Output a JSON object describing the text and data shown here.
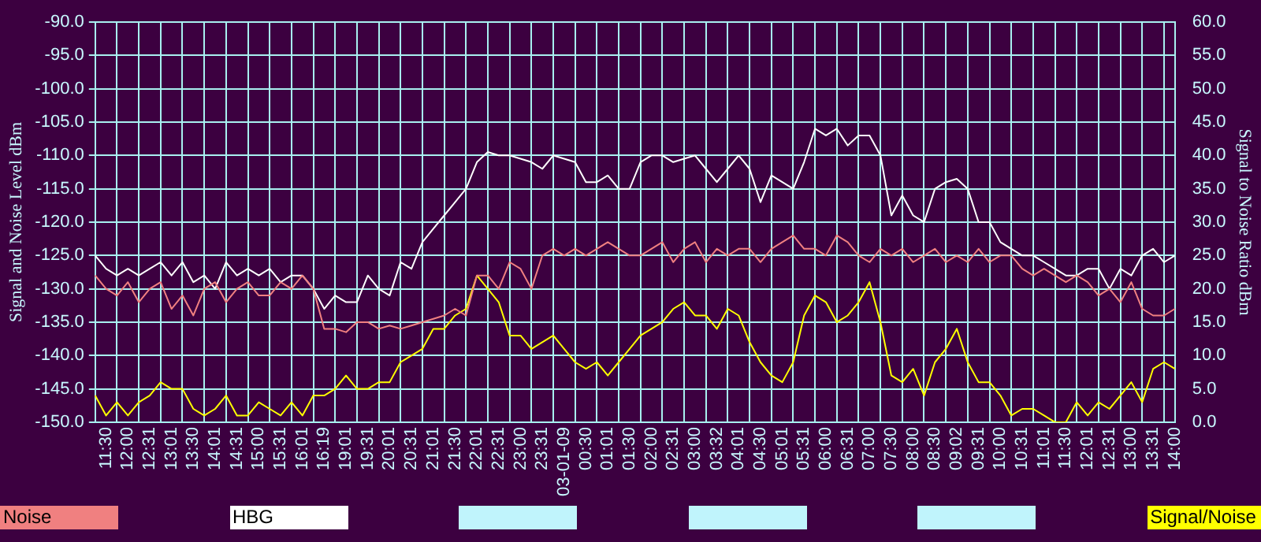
{
  "chart_data": {
    "type": "line",
    "ylabel": "Signal and Noise Level dBm",
    "y2label": "Signal to Noise Ratio dBm",
    "categories": [
      null,
      "11:30",
      null,
      "12:00",
      null,
      "12:31",
      null,
      "13:01",
      null,
      "13:30",
      null,
      "14:01",
      null,
      "14:31",
      null,
      "15:00",
      null,
      "15:31",
      null,
      "16:01",
      null,
      "16:19",
      null,
      "19:01",
      null,
      "19:31",
      null,
      "20:01",
      null,
      "20:31",
      null,
      "21:01",
      null,
      "21:30",
      null,
      "22:01",
      null,
      "22:31",
      null,
      "23:00",
      null,
      "23:31",
      null,
      "03-01-09",
      null,
      "00:30",
      null,
      "01:01",
      null,
      "01:30",
      null,
      "02:00",
      null,
      "02:31",
      null,
      "03:00",
      null,
      "03:32",
      null,
      "04:01",
      null,
      "04:30",
      null,
      "05:01",
      null,
      "05:31",
      null,
      "06:00",
      null,
      "06:31",
      null,
      "07:00",
      null,
      "07:30",
      null,
      "08:00",
      null,
      "08:30",
      null,
      "09:02",
      null,
      "09:31",
      null,
      "10:00",
      null,
      "10:31",
      null,
      "11:01",
      null,
      "11:30",
      null,
      "12:01",
      null,
      "12:31",
      null,
      "13:00",
      null,
      "13:31",
      null,
      "14:00"
    ],
    "series": [
      {
        "name": "Noise",
        "color": "#f08080",
        "values": [
          -128,
          -130,
          -131,
          -129,
          -132,
          -130,
          -129,
          -133,
          -131,
          -134,
          -130,
          -129,
          -132,
          -130,
          -129,
          -131,
          -131,
          -129,
          -130,
          -128,
          -130,
          -136,
          -136,
          -136.5,
          -135,
          -135,
          -136,
          -135.5,
          -136,
          -135.5,
          -135,
          -134.5,
          -134,
          -133,
          -134,
          -128,
          -128,
          -130,
          -126,
          -127,
          -130,
          -125,
          -124,
          -125,
          -124,
          -125,
          -124,
          -123,
          -124,
          -125,
          -125,
          -124,
          -123,
          -126,
          -124,
          -123,
          -126,
          -124,
          -125,
          -124,
          -124,
          -126,
          -124,
          -123,
          -122,
          -124,
          -124,
          -125,
          -122,
          -123,
          -125,
          -126,
          -124,
          -125,
          -124,
          -126,
          -125,
          -124,
          -126,
          -125,
          -126,
          -124,
          -126,
          -125,
          -125,
          -127,
          -128,
          -127,
          -128,
          -129,
          -128,
          -129,
          -131,
          -130,
          -132,
          -129,
          -133,
          -134,
          -134,
          -133
        ]
      },
      {
        "name": "HBG",
        "color": "#ffffff",
        "values": [
          -125,
          -127,
          -128,
          -127,
          -128,
          -127,
          -126,
          -128,
          -126,
          -129,
          -128,
          -130,
          -126,
          -128,
          -127,
          -128,
          -127,
          -129,
          -128,
          -128,
          -130,
          -133,
          -131,
          -132,
          -132,
          -128,
          -130,
          -131,
          -126,
          -127,
          -123,
          -121,
          -119,
          -117,
          -115,
          -111,
          -109.5,
          -110,
          -110,
          -110.5,
          -111,
          -112,
          -110,
          -110.5,
          -111,
          -114,
          -114,
          -113,
          -115,
          -115,
          -111,
          -110,
          -110,
          -111,
          -110.5,
          -110,
          -112,
          -114,
          -112,
          -110,
          -112,
          -117,
          -113,
          -114,
          -115,
          -111,
          -106,
          -107,
          -106,
          -108.5,
          -107,
          -107,
          -110,
          -119,
          -116,
          -119,
          -120,
          -115,
          -114,
          -113.5,
          -115,
          -120,
          -120,
          -123,
          -124,
          -125,
          -125,
          -126,
          -127,
          -128,
          -128,
          -127,
          -127,
          -130,
          -127,
          -128,
          -125,
          -124,
          -126,
          -125
        ]
      },
      {
        "name": "Signal/Noise",
        "color": "#ffff00",
        "axis": "y2",
        "values": [
          4,
          1,
          3,
          1,
          3,
          4,
          6,
          5,
          5,
          2,
          1,
          2,
          4,
          1,
          1,
          3,
          2,
          1,
          3,
          1,
          4,
          4,
          5,
          7,
          5,
          5,
          6,
          6,
          9,
          10,
          11,
          14,
          14,
          16,
          17,
          22,
          20,
          18,
          13,
          13,
          11,
          12,
          13,
          11,
          9,
          8,
          9,
          7,
          9,
          11,
          13,
          14,
          15,
          17,
          18,
          16,
          16,
          14,
          17,
          16,
          12,
          9,
          7,
          6,
          9,
          16,
          19,
          18,
          15,
          16,
          18,
          21,
          15,
          7,
          6,
          8,
          4,
          9,
          11,
          14,
          9,
          6,
          6,
          4,
          1,
          2,
          2,
          1,
          0,
          0,
          3,
          1,
          3,
          2,
          4,
          6,
          3,
          8,
          9,
          8
        ]
      }
    ],
    "ylim": [
      -150,
      -90
    ],
    "yticks": [
      {
        "value": -150,
        "label": "-150.0"
      },
      {
        "value": -145,
        "label": "-145.0"
      },
      {
        "value": -140,
        "label": "-140.0"
      },
      {
        "value": -135,
        "label": "-135.0"
      },
      {
        "value": -130,
        "label": "-130.0"
      },
      {
        "value": -125,
        "label": "-125.0"
      },
      {
        "value": -120,
        "label": "-120.0"
      },
      {
        "value": -115,
        "label": "-115.0"
      },
      {
        "value": -110,
        "label": "-110.0"
      },
      {
        "value": -105,
        "label": "-105.0"
      },
      {
        "value": -100,
        "label": "-100.0"
      },
      {
        "value": -95,
        "label": "-95.0"
      },
      {
        "value": -90,
        "label": "-90.0"
      }
    ],
    "y2lim": [
      0,
      60
    ],
    "y2ticks": [
      {
        "value": 0,
        "label": "0.0"
      },
      {
        "value": 5,
        "label": "5.0"
      },
      {
        "value": 10,
        "label": "10.0"
      },
      {
        "value": 15,
        "label": "15.0"
      },
      {
        "value": 20,
        "label": "20.0"
      },
      {
        "value": 25,
        "label": "25.0"
      },
      {
        "value": 30,
        "label": "30.0"
      },
      {
        "value": 35,
        "label": "35.0"
      },
      {
        "value": 40,
        "label": "40.0"
      },
      {
        "value": 45,
        "label": "45.0"
      },
      {
        "value": 50,
        "label": "50.0"
      },
      {
        "value": 55,
        "label": "55.0"
      },
      {
        "value": 60,
        "label": "60.0"
      }
    ],
    "grid": true,
    "legend": "bottom"
  }
}
